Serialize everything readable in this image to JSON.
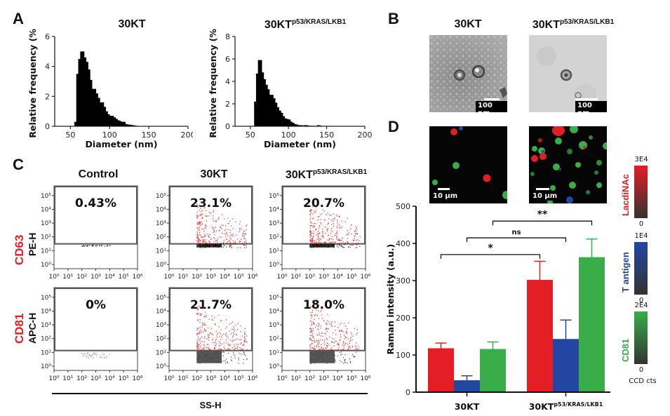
{
  "figure": {
    "panels": {
      "A": "A",
      "B": "B",
      "C": "C",
      "D": "D"
    },
    "sample_names": {
      "wt": "30KT",
      "mut_base": "30KT",
      "mut_sup": "p53/KRAS/LKB1",
      "control": "Control"
    }
  },
  "panel_b": {
    "scale_label": "100 nm"
  },
  "panel_c": {
    "row_labels": [
      {
        "marker": "CD63",
        "channel": "PE-H"
      },
      {
        "marker": "CD81",
        "channel": "APC-H"
      }
    ],
    "x_axis_label": "SS-H",
    "tick_labels": [
      "10⁰",
      "10¹",
      "10²",
      "10³",
      "10⁴",
      "10⁵",
      "10⁶"
    ],
    "y_tick_labels": [
      "10⁰",
      "10¹",
      "10²",
      "10³",
      "10⁴",
      "10⁵"
    ],
    "percentages": [
      [
        "0.43%",
        "23.1%",
        "20.7%"
      ],
      [
        "0%",
        "21.7%",
        "18.0%"
      ]
    ]
  },
  "panel_d": {
    "scale_label": "10 µm",
    "colorbars": [
      {
        "label": "LacdiNAc",
        "max": "3E4",
        "min": "0",
        "color": "#e31e24"
      },
      {
        "label": "T antigen",
        "max": "1E4",
        "min": "0",
        "color": "#2446a3"
      },
      {
        "label": "CD81",
        "max": "2E4",
        "min": "0",
        "color": "#39ad48"
      }
    ],
    "colorbar_units": "CCD cts"
  },
  "chart_data": [
    {
      "type": "bar",
      "title": "30KT",
      "xlabel": "Diameter (nm)",
      "ylabel": "Relative frequency (%)",
      "xlim": [
        30,
        200
      ],
      "ylim": [
        0,
        6
      ],
      "xticks": [
        50,
        100,
        150,
        200
      ],
      "yticks": [
        0,
        2,
        4,
        6
      ],
      "bin_width": 2.5,
      "x": [
        55,
        57.5,
        60,
        62.5,
        65,
        67.5,
        70,
        72.5,
        75,
        77.5,
        80,
        82.5,
        85,
        87.5,
        90,
        92.5,
        95,
        97.5,
        100,
        102.5,
        105,
        107.5,
        110,
        112.5,
        115,
        117.5,
        120,
        122.5,
        125,
        127.5,
        130,
        132.5,
        135
      ],
      "values": [
        0.3,
        3.5,
        4.5,
        5.0,
        5.0,
        4.6,
        4.3,
        3.8,
        3.1,
        2.5,
        2.5,
        2.2,
        1.9,
        1.6,
        1.6,
        1.3,
        1.0,
        0.8,
        0.7,
        0.7,
        0.6,
        0.5,
        0.4,
        0.35,
        0.3,
        0.3,
        0.15,
        0.12,
        0.1,
        0.08,
        0.06,
        0.04,
        0.02
      ]
    },
    {
      "type": "bar",
      "title": "30KT p53/KRAS/LKB1",
      "xlabel": "Diameter (nm)",
      "ylabel": "Relative frequency (%)",
      "xlim": [
        30,
        200
      ],
      "ylim": [
        0,
        8
      ],
      "xticks": [
        50,
        100,
        150,
        200
      ],
      "yticks": [
        0,
        2,
        4,
        6,
        8
      ],
      "bin_width": 2.5,
      "x": [
        55,
        57.5,
        60,
        62.5,
        65,
        67.5,
        70,
        72.5,
        75,
        77.5,
        80,
        82.5,
        85,
        87.5,
        90,
        92.5,
        95,
        97.5,
        100,
        102.5,
        105,
        107.5,
        110,
        112.5,
        115,
        117.5,
        120,
        122.5,
        125,
        127.5,
        130,
        132.5,
        135,
        137.5,
        140,
        142.5
      ],
      "values": [
        2.2,
        4.7,
        5.9,
        5.9,
        4.8,
        4.2,
        3.7,
        3.3,
        2.8,
        2.8,
        2.5,
        2.1,
        1.7,
        1.4,
        1.2,
        0.9,
        0.7,
        0.65,
        0.6,
        0.4,
        0.3,
        0.2,
        0.15,
        0.1,
        0.1,
        0.08,
        0.1,
        0.1,
        0.06,
        0.05,
        0.04,
        0.04,
        0.03,
        0.1,
        0.08,
        0.02
      ]
    },
    {
      "type": "bar",
      "title": "",
      "xlabel": "",
      "ylabel": "Raman intensity (a.u.)",
      "ylim": [
        0,
        500
      ],
      "yticks": [
        0,
        100,
        200,
        300,
        400,
        500
      ],
      "categories": [
        "30KT",
        "30KT p53/KRAS/LKB1"
      ],
      "category_labels": [
        {
          "base": "30KT",
          "sup": ""
        },
        {
          "base": "30KT",
          "sup": "p53/KRAS/LKB1"
        }
      ],
      "series": [
        {
          "name": "LacdiNAc",
          "color": "#e31e24",
          "values": [
            118,
            302
          ],
          "errors": [
            14,
            50
          ]
        },
        {
          "name": "T antigen",
          "color": "#2446a3",
          "values": [
            32,
            143
          ],
          "errors": [
            12,
            51
          ]
        },
        {
          "name": "CD81",
          "color": "#39ad48",
          "values": [
            116,
            363
          ],
          "errors": [
            19,
            49
          ]
        }
      ],
      "significance": [
        {
          "from": "30KT LacdiNAc",
          "to": "30KT p53/KRAS/LKB1 LacdiNAc",
          "label": "*"
        },
        {
          "from": "30KT T antigen",
          "to": "30KT p53/KRAS/LKB1 T antigen",
          "label": "ns"
        },
        {
          "from": "30KT CD81",
          "to": "30KT p53/KRAS/LKB1 CD81",
          "label": "**"
        }
      ]
    }
  ]
}
